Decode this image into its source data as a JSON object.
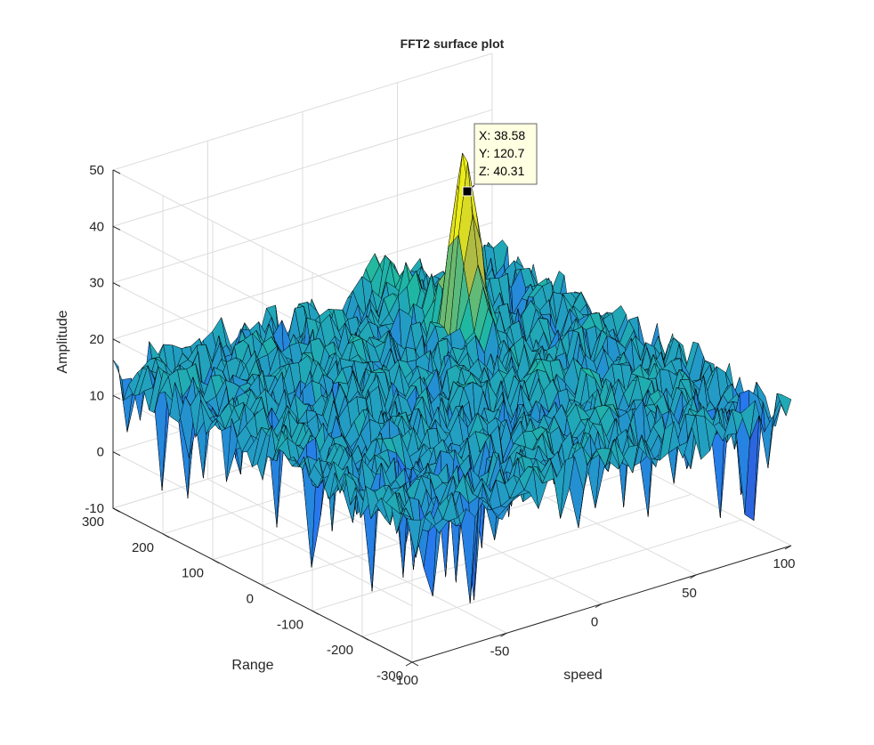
{
  "chart_data": {
    "type": "surface",
    "title": "FFT2 surface plot",
    "xlabel": "speed",
    "ylabel": "Range",
    "zlabel": "Amplitude",
    "xlim": [
      -100,
      100
    ],
    "ylim": [
      -300,
      300
    ],
    "zlim": [
      -10,
      50
    ],
    "xticks": [
      "-100",
      "-50",
      "0",
      "50",
      "100"
    ],
    "yticks": [
      "-300",
      "-200",
      "-100",
      "0",
      "100",
      "200",
      "300"
    ],
    "zticks": [
      "-10",
      "0",
      "10",
      "20",
      "30",
      "40",
      "50"
    ],
    "grid": true,
    "colormap": "parula",
    "colors": {
      "low": "#3e26a8",
      "mid": "#1fb8a3",
      "high": "#f9fb0e",
      "edge": "#000000"
    },
    "noise_floor": {
      "mean": 14,
      "min": -5,
      "max": 21
    },
    "peak": {
      "x": 38.58,
      "y": 120.7,
      "z": 40.31
    },
    "datatip": {
      "x_label": "X: 38.58",
      "y_label": "Y: 120.7",
      "z_label": "Z: 40.31"
    }
  }
}
